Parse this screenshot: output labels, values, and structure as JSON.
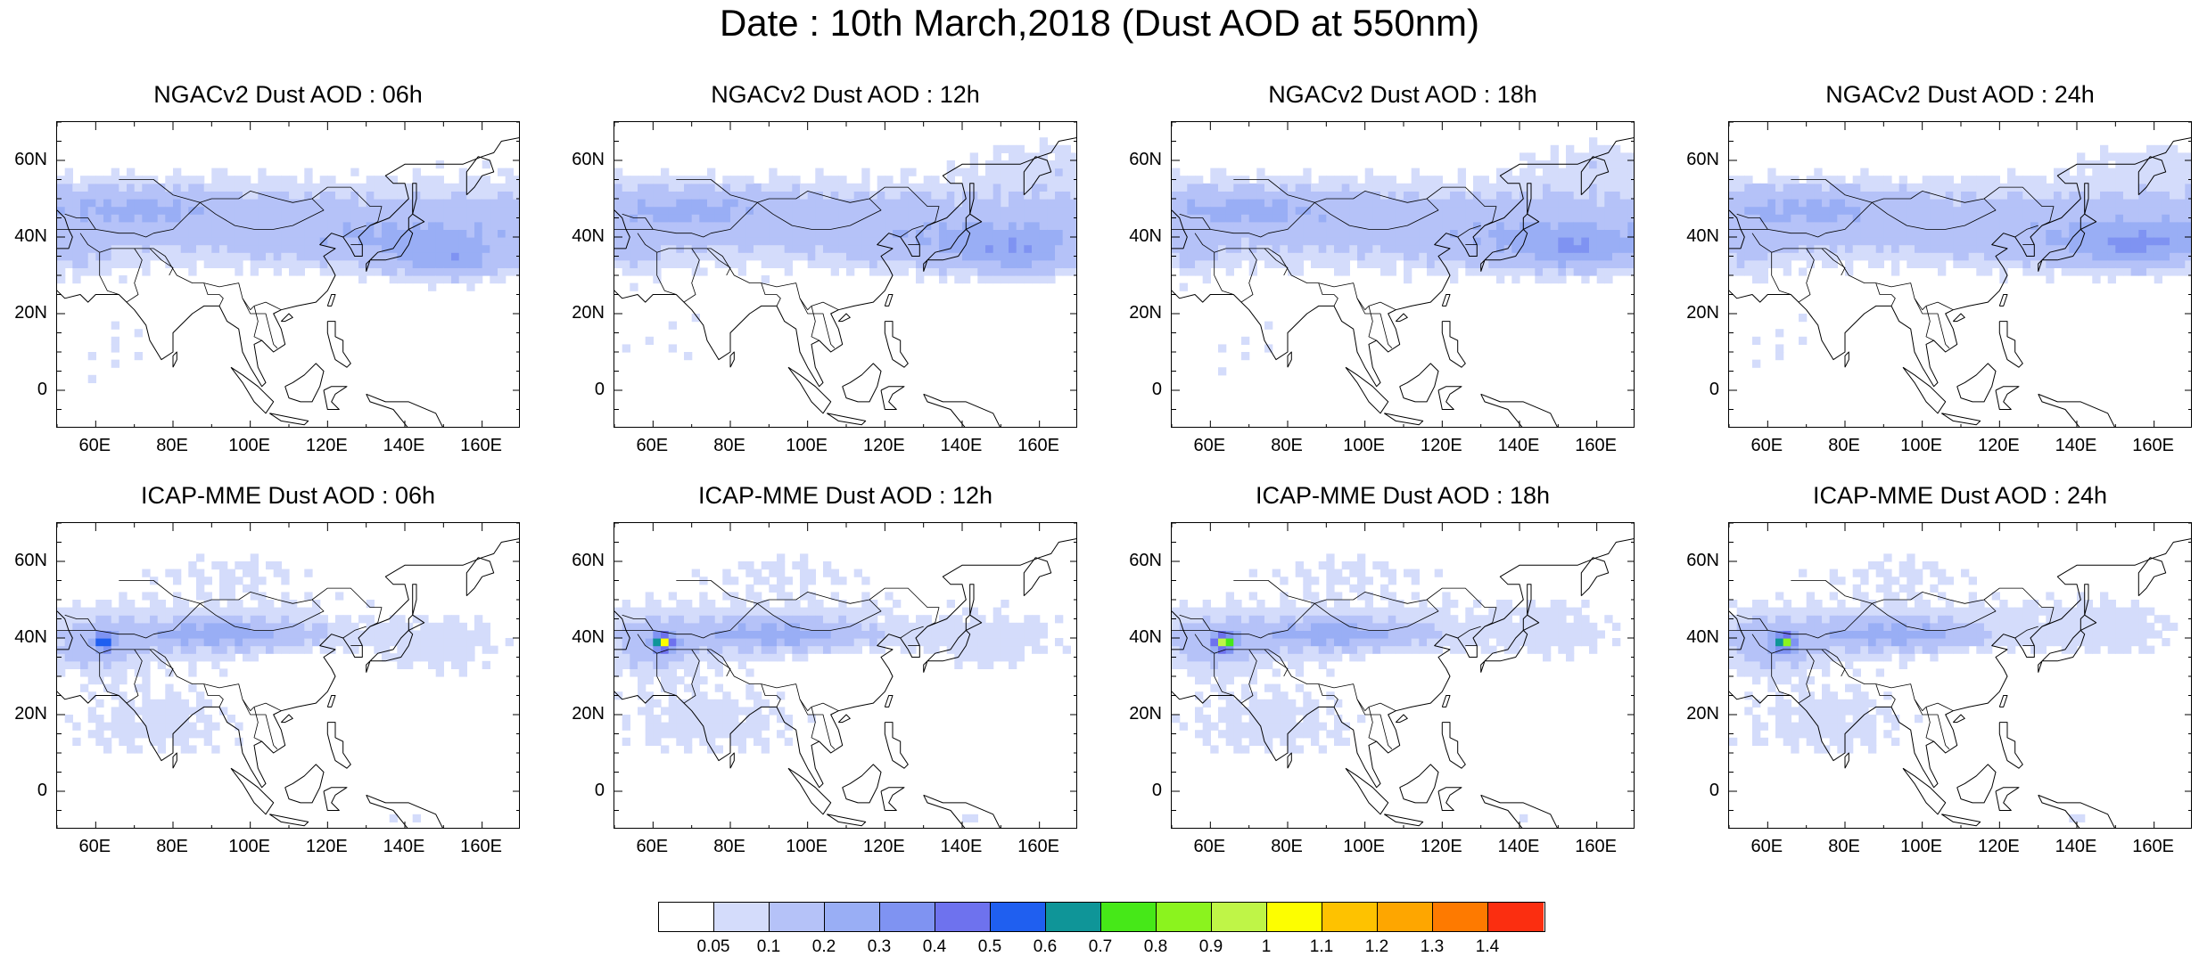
{
  "title": "Date : 10th March,2018 (Dust AOD at 550nm)",
  "lat_ticks": [
    "60N",
    "40N",
    "20N",
    "0"
  ],
  "lon_ticks": [
    "60E",
    "80E",
    "100E",
    "120E",
    "140E",
    "160E"
  ],
  "domain": {
    "lon_range": [
      50,
      170
    ],
    "lat_range": [
      -10,
      70
    ]
  },
  "panels": [
    {
      "title": "NGACv2 Dust AOD : 06h",
      "model": "NGACv2",
      "hour": "06h"
    },
    {
      "title": "NGACv2 Dust AOD : 12h",
      "model": "NGACv2",
      "hour": "12h"
    },
    {
      "title": "NGACv2 Dust AOD : 18h",
      "model": "NGACv2",
      "hour": "18h"
    },
    {
      "title": "NGACv2 Dust AOD : 24h",
      "model": "NGACv2",
      "hour": "24h"
    },
    {
      "title": "ICAP-MME Dust AOD : 06h",
      "model": "ICAP-MME",
      "hour": "06h"
    },
    {
      "title": "ICAP-MME Dust AOD : 12h",
      "model": "ICAP-MME",
      "hour": "12h"
    },
    {
      "title": "ICAP-MME Dust AOD : 18h",
      "model": "ICAP-MME",
      "hour": "18h"
    },
    {
      "title": "ICAP-MME Dust AOD : 24h",
      "model": "ICAP-MME",
      "hour": "24h"
    }
  ],
  "colorbar": {
    "colors": [
      "#ffffff",
      "#d4dcfb",
      "#b5c2f8",
      "#99aef5",
      "#7f93f2",
      "#6e72ee",
      "#1f5ff0",
      "#0f9598",
      "#46e818",
      "#8bf31e",
      "#bff547",
      "#fdfe00",
      "#fec200",
      "#fea600",
      "#fe7a00",
      "#fb2e10"
    ],
    "labels": [
      "0.05",
      "0.1",
      "0.2",
      "0.3",
      "0.4",
      "0.5",
      "0.6",
      "0.7",
      "0.8",
      "0.9",
      "1",
      "1.1",
      "1.2",
      "1.3",
      "1.4"
    ]
  }
}
